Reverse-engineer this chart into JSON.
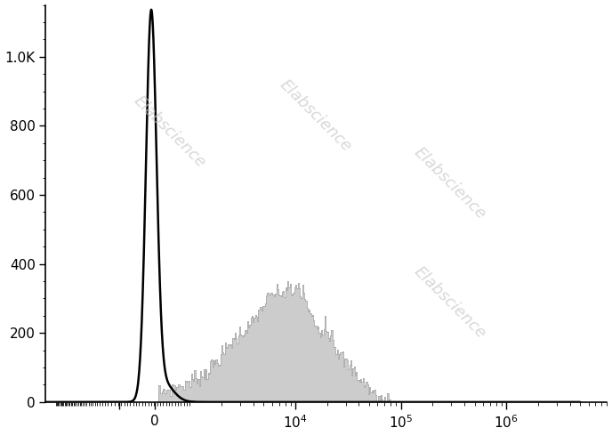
{
  "background_color": "#ffffff",
  "watermark_text": "Elabscience",
  "watermark_color": "#c8c8c8",
  "y_ticks": [
    0,
    200,
    400,
    600,
    800,
    1000
  ],
  "y_tick_labels": [
    "0",
    "200",
    "400",
    "600",
    "800",
    "1.0K"
  ],
  "y_lim": [
    0,
    1150
  ],
  "linthresh": 1000,
  "linscale": 0.3,
  "xlim_min": -5000,
  "xlim_max": 5000000,
  "black_peak_x": -100,
  "black_peak_amp": 1100,
  "black_peak_sigma": 150,
  "gray_fill_color": "#cccccc",
  "gray_edge_color": "#aaaaaa",
  "figsize": [
    6.88,
    4.9
  ],
  "dpi": 100
}
